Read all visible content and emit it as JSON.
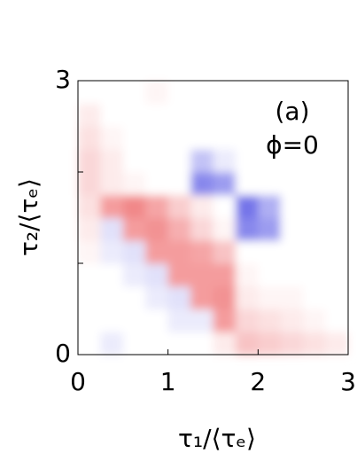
{
  "chart_data": {
    "type": "heatmap",
    "xlabel": "τ₁/⟨τₑ⟩",
    "ylabel": "τ₂/⟨τₑ⟩",
    "annotations": [
      "(a)",
      "ϕ=0"
    ],
    "xlim": [
      0,
      3
    ],
    "ylim": [
      0,
      3
    ],
    "xticks": [
      0,
      1,
      2,
      3
    ],
    "yticks": [
      0,
      3
    ],
    "yminor_ticks": [
      1,
      2
    ],
    "colors": {
      "positive": "#e8383a",
      "negative": "#3838e0"
    },
    "zlim": [
      -1,
      1
    ],
    "z": [
      [
        0,
        -0.1,
        0,
        0,
        0,
        0,
        0.1,
        0.3,
        0.25,
        0.2,
        0.15,
        0.1
      ],
      [
        0,
        0,
        0,
        0,
        -0.1,
        -0.1,
        0.5,
        0.2,
        0.15,
        0.1,
        0.05,
        0
      ],
      [
        0,
        0,
        0,
        -0.1,
        -0.15,
        0.5,
        0.55,
        0.1,
        0.05,
        0.05,
        0,
        0
      ],
      [
        0,
        0,
        -0.1,
        -0.15,
        0.5,
        0.5,
        0.5,
        0.05,
        0,
        0,
        0,
        0
      ],
      [
        0.05,
        -0.1,
        -0.15,
        0.5,
        0.5,
        0.45,
        0.3,
        0,
        0,
        0,
        0,
        0
      ],
      [
        0.1,
        -0.15,
        0.5,
        0.55,
        0.4,
        0.2,
        0.05,
        -0.6,
        -0.5,
        0,
        0,
        0
      ],
      [
        0.15,
        0.5,
        0.6,
        0.45,
        0.25,
        0.1,
        0,
        -0.7,
        -0.4,
        0,
        0,
        0
      ],
      [
        0.2,
        0.1,
        0.05,
        0,
        0,
        -0.6,
        -0.5,
        0,
        0,
        0,
        0,
        0
      ],
      [
        0.2,
        0.1,
        0,
        0,
        0,
        -0.3,
        -0.1,
        0,
        0,
        0,
        0,
        0
      ],
      [
        0.15,
        0.05,
        0,
        0,
        0,
        0,
        0,
        0,
        0,
        0,
        0,
        0
      ],
      [
        0.1,
        0,
        0,
        0,
        0,
        0,
        0,
        0,
        0,
        0,
        0,
        0
      ],
      [
        0,
        0,
        0,
        0.05,
        0,
        0,
        0,
        0,
        0,
        0,
        0,
        0
      ]
    ]
  }
}
